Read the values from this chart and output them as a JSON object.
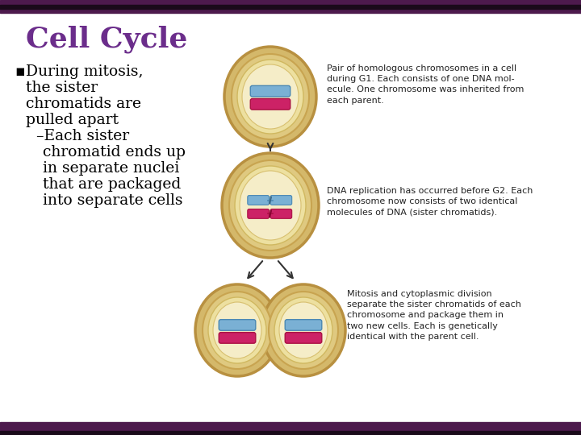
{
  "bg_color": "#ffffff",
  "border_color": "#4d1a4d",
  "border_thin_color": "#1a0a1a",
  "title": "Cell Cycle",
  "title_color": "#6b2d8b",
  "title_fontsize": 26,
  "bullet_color": "#000000",
  "bullet_fontsize": 13.5,
  "annotation1": "Pair of homologous chromosomes in a cell\nduring G1. Each consists of one DNA mol-\necule. One chromosome was inherited from\neach parent.",
  "annotation2": "DNA replication has occurred before G2. Each\nchromosome now consists of two identical\nmolecules of DNA (sister chromatids).",
  "annotation3": "Mitosis and cytoplasmic division\nseparate the sister chromatids of each\nchromosome and package them in\ntwo new cells. Each is genetically\nidentical with the parent cell.",
  "annotation_fontsize": 8.0,
  "annotation_color": "#222222",
  "cell_outer_color": "#d4b86a",
  "cell_outer_edge": "#b89040",
  "cell_mid_color": "#dfc980",
  "cell_mid_edge": "#c8a450",
  "cell_inner_color": "#ede0a0",
  "cell_inner_edge": "#d0b860",
  "cell_nucleus_color": "#f5edc8",
  "cell_nucleus_edge": "#d8c070",
  "chromosome_blue": "#7ab0d4",
  "chromosome_blue_edge": "#4a88b4",
  "chromosome_pink": "#cc2266",
  "chromosome_pink_edge": "#aa1144",
  "arrow_color": "#333333"
}
